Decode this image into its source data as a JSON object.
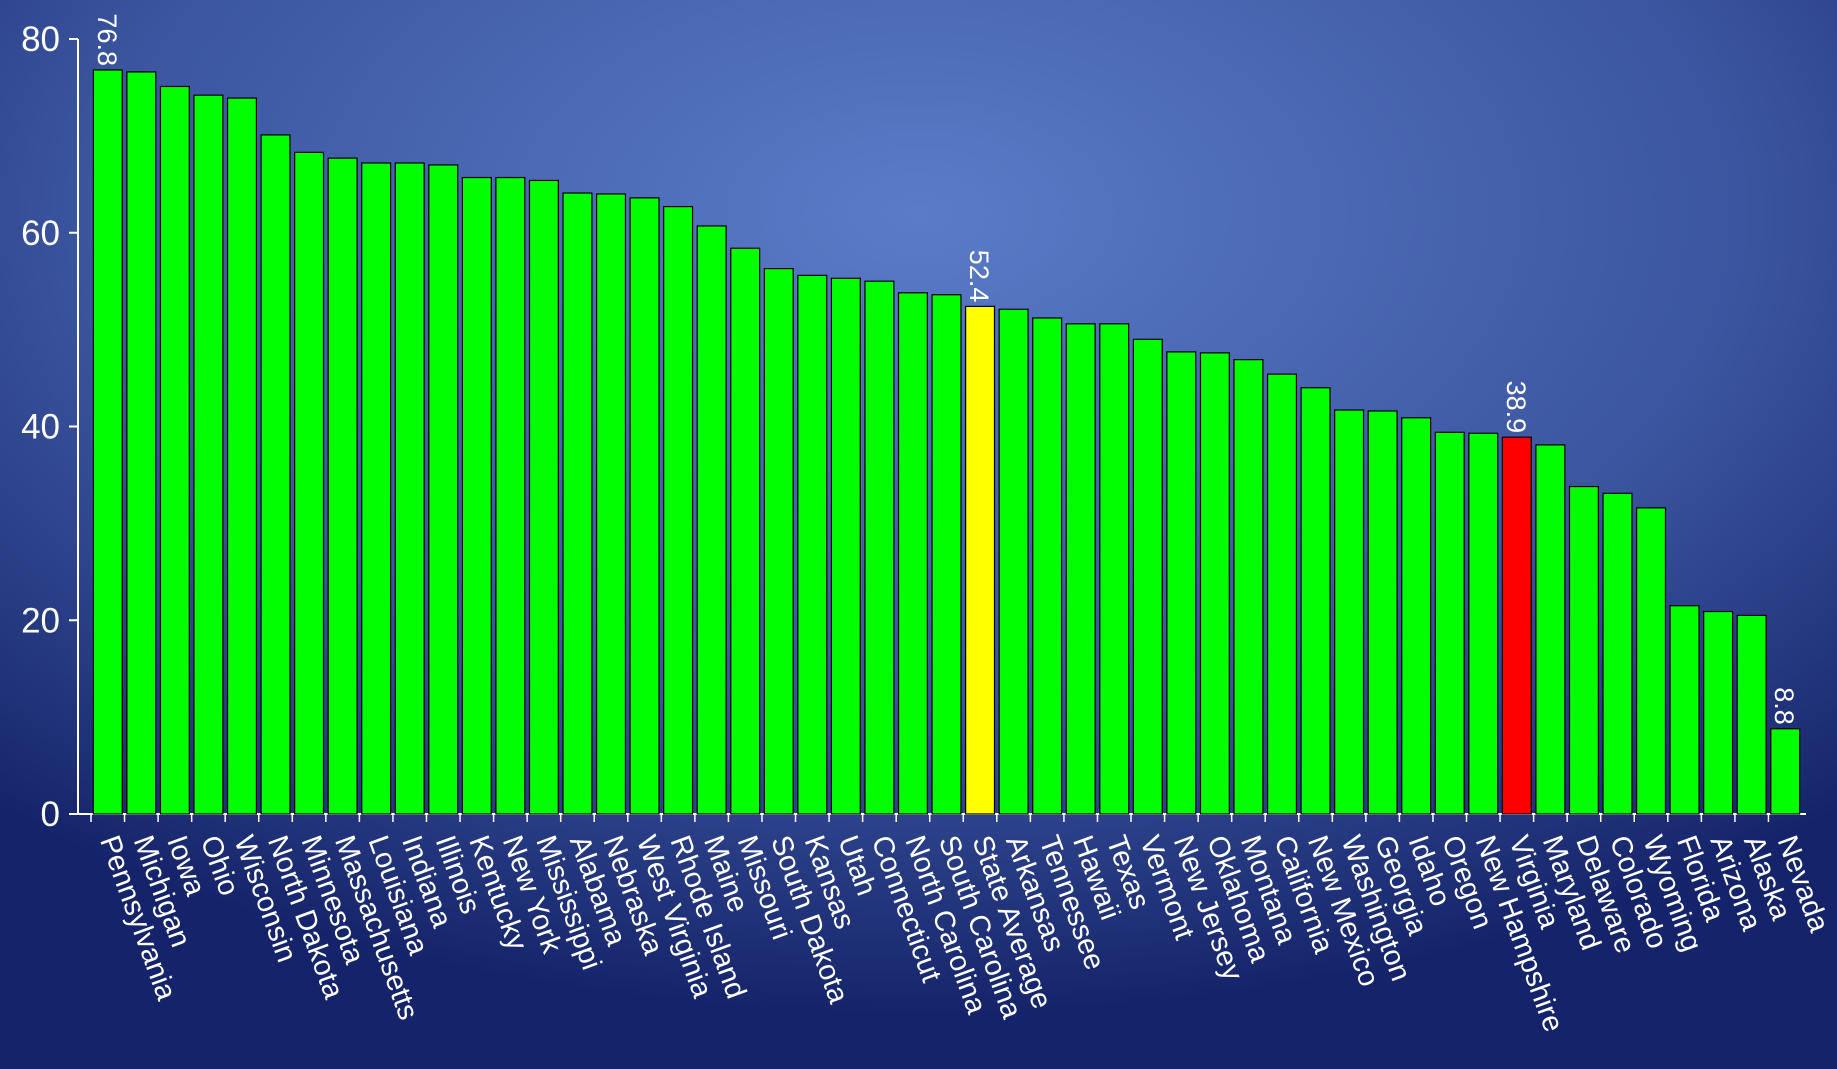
{
  "chart_data": {
    "type": "bar",
    "categories": [
      "Pennsylvania",
      "Michigan",
      "Iowa",
      "Ohio",
      "Wisconsin",
      "North Dakota",
      "Minnesota",
      "Massachusetts",
      "Louisiana",
      "Indiana",
      "Illinois",
      "Kentucky",
      "New York",
      "Mississippi",
      "Alabama",
      "Nebraska",
      "West Virginia",
      "Rhode Island",
      "Maine",
      "Missouri",
      "South Dakota",
      "Kansas",
      "Utah",
      "Connecticut",
      "North Carolina",
      "South Carolina",
      "State Average",
      "Arkansas",
      "Tennessee",
      "Hawaii",
      "Texas",
      "Vermont",
      "New Jersey",
      "Oklahoma",
      "Montana",
      "California",
      "New Mexico",
      "Washington",
      "Georgia",
      "Idaho",
      "Oregon",
      "New Hampshire",
      "Virginia",
      "Maryland",
      "Delaware",
      "Colorado",
      "Wyoming",
      "Florida",
      "Arizona",
      "Alaska",
      "Nevada"
    ],
    "values": [
      76.8,
      76.6,
      75.1,
      74.2,
      73.9,
      70.1,
      68.3,
      67.7,
      67.2,
      67.2,
      67.0,
      65.7,
      65.7,
      65.4,
      64.1,
      64.0,
      63.6,
      62.7,
      60.7,
      58.4,
      56.3,
      55.6,
      55.3,
      55.0,
      53.8,
      53.6,
      52.4,
      52.1,
      51.2,
      50.6,
      50.6,
      49.0,
      47.7,
      47.6,
      46.9,
      45.4,
      44.0,
      41.7,
      41.6,
      40.9,
      39.4,
      39.3,
      38.9,
      38.1,
      33.8,
      33.1,
      31.6,
      21.5,
      20.9,
      20.5,
      8.8
    ],
    "color": "#00ff00",
    "highlight_colors": {
      "26": "#ffff00",
      "42": "#ff0000"
    },
    "labeled_indices": [
      0,
      26,
      42,
      50
    ],
    "ylim": [
      0,
      80
    ],
    "yticks": [
      0,
      20,
      40,
      60,
      80
    ],
    "grid": false
  }
}
